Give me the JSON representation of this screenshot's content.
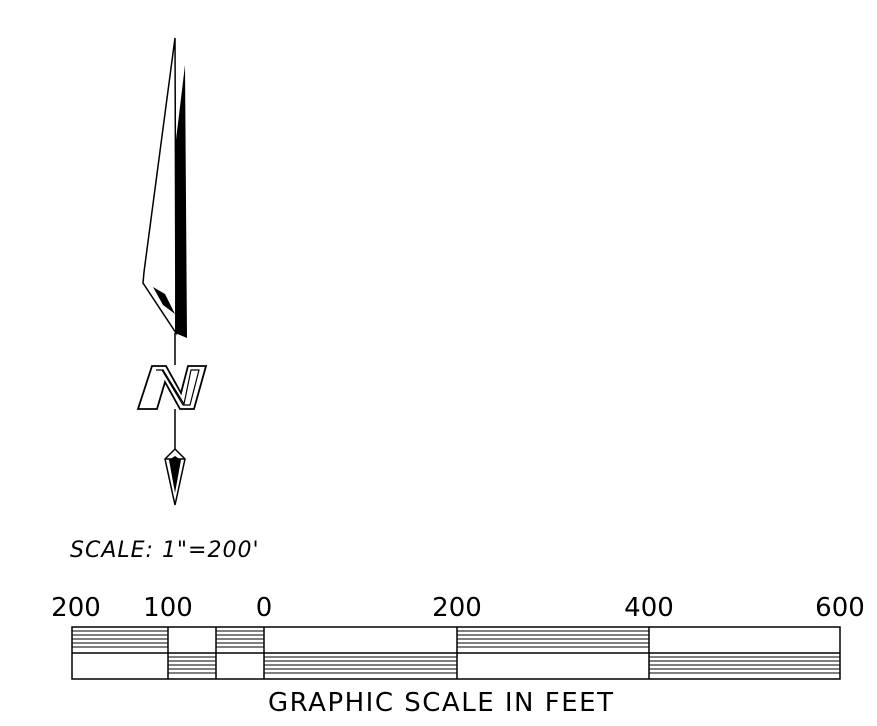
{
  "north_arrow": {
    "letter": "N",
    "icon": "north-arrow-icon"
  },
  "scale_note": "SCALE: 1\"=200'",
  "graphic_scale": {
    "labels": [
      "200",
      "100",
      "0",
      "200",
      "400",
      "600"
    ],
    "title": "GRAPHIC SCALE IN FEET",
    "units": "feet"
  }
}
